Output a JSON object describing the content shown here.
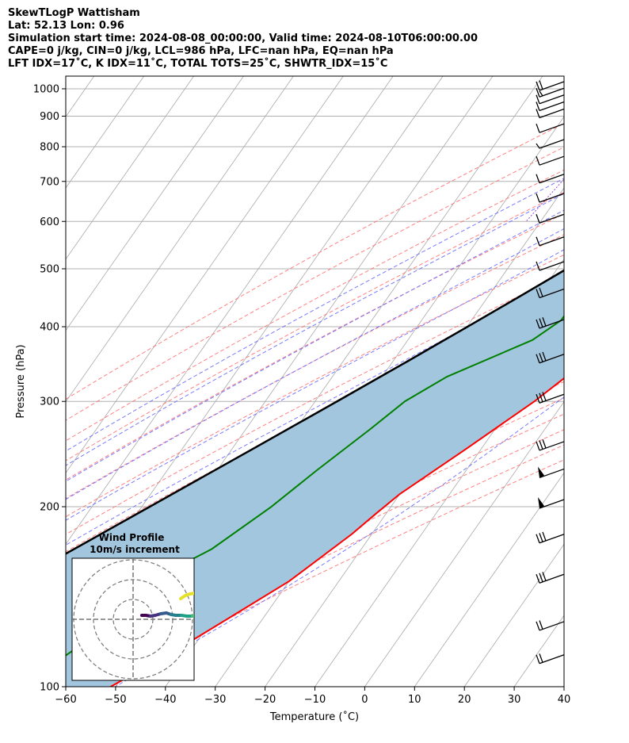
{
  "header": {
    "title": "SkewTLogP Wattisham",
    "latlon": "Lat: 52.13   Lon: 0.96",
    "times": "Simulation start time: 2024-08-08_00:00:00, Valid time: 2024-08-10T06:00:00.00",
    "indices1": "CAPE=0 j/kg, CIN=0 j/kg, LCL=986 hPa, LFC=nan hPa, EQ=nan hPa",
    "indices2": "LFT IDX=17˚C, K IDX=11˚C, TOTAL TOTS=25˚C, SHWTR_IDX=15˚C"
  },
  "chart_data": {
    "type": "skewt",
    "xlabel": "Temperature (˚C)",
    "ylabel": "Pressure (hPa)",
    "xlim": [
      -60,
      40
    ],
    "ylim": [
      1050,
      100
    ],
    "x_ticks": [
      "−60",
      "−50",
      "−40",
      "−30",
      "−20",
      "−10",
      "0",
      "10",
      "20",
      "30",
      "40"
    ],
    "x_tick_values": [
      -60,
      -50,
      -40,
      -30,
      -20,
      -10,
      0,
      10,
      20,
      30,
      40
    ],
    "y_ticks": [
      "1000",
      "900",
      "800",
      "700",
      "600",
      "500",
      "400",
      "300",
      "200",
      "100"
    ],
    "y_tick_values": [
      1000,
      900,
      800,
      700,
      600,
      500,
      400,
      300,
      200,
      100
    ],
    "colors": {
      "temperature": "#ff0000",
      "dewpoint": "#008000",
      "parcel": "#000000",
      "fill": "#a3c6df",
      "dry_adiabat": "#ff6b6b",
      "moist_adiabat": "#6b6bff",
      "mixing_ratio": "#9a4ad0",
      "isotherm": "#a9a9a9"
    },
    "series": [
      {
        "name": "Temperature",
        "points": [
          [
            1000,
            16
          ],
          [
            960,
            15
          ],
          [
            900,
            14.3
          ],
          [
            850,
            13.7
          ],
          [
            800,
            13.2
          ],
          [
            750,
            12.8
          ],
          [
            700,
            12.3
          ],
          [
            650,
            11.5
          ],
          [
            600,
            10.2
          ],
          [
            550,
            8.8
          ],
          [
            500,
            7
          ],
          [
            450,
            4.7
          ],
          [
            400,
            2
          ],
          [
            350,
            -1.3
          ],
          [
            300,
            -6
          ],
          [
            250,
            -13
          ],
          [
            210,
            -20
          ],
          [
            195,
            -22
          ],
          [
            180,
            -24
          ],
          [
            150,
            -30
          ],
          [
            130,
            -37
          ],
          [
            115,
            -43
          ],
          [
            100,
            -51
          ]
        ]
      },
      {
        "name": "Dewpoint",
        "points": [
          [
            1000,
            10
          ],
          [
            985,
            7.5
          ],
          [
            960,
            4.5
          ],
          [
            920,
            -1
          ],
          [
            880,
            -3
          ],
          [
            850,
            1.5
          ],
          [
            800,
            4.5
          ],
          [
            750,
            3.5
          ],
          [
            700,
            0
          ],
          [
            650,
            -2.5
          ],
          [
            600,
            -4.5
          ],
          [
            560,
            -6
          ],
          [
            520,
            -11
          ],
          [
            480,
            -13
          ],
          [
            450,
            -12
          ],
          [
            410,
            -12
          ],
          [
            380,
            -15
          ],
          [
            330,
            -27
          ],
          [
            300,
            -32
          ],
          [
            270,
            -35
          ],
          [
            230,
            -40
          ],
          [
            200,
            -44
          ],
          [
            170,
            -50
          ],
          [
            145,
            -60
          ],
          [
            120,
            -62
          ],
          [
            100,
            -69
          ]
        ]
      },
      {
        "name": "Parcel",
        "points": [
          [
            1000,
            13.6
          ],
          [
            986,
            12.3
          ],
          [
            950,
            10.7
          ],
          [
            900,
            8.6
          ],
          [
            850,
            6.3
          ],
          [
            800,
            3.9
          ],
          [
            750,
            1.1
          ],
          [
            700,
            -1.9
          ],
          [
            650,
            -5.3
          ],
          [
            600,
            -9.1
          ],
          [
            550,
            -13.3
          ],
          [
            500,
            -18.1
          ],
          [
            450,
            -23.6
          ],
          [
            400,
            -29.9
          ],
          [
            350,
            -37.1
          ],
          [
            300,
            -45.6
          ],
          [
            250,
            -55.8
          ],
          [
            200,
            -68.4
          ],
          [
            150,
            -84.7
          ],
          [
            100,
            -107.6
          ]
        ]
      }
    ],
    "wind_barbs": [
      {
        "p": 1000,
        "barb": "2 full"
      },
      {
        "p": 975,
        "barb": "1 full 1 half"
      },
      {
        "p": 950,
        "barb": "1 full"
      },
      {
        "p": 925,
        "barb": "1 full"
      },
      {
        "p": 900,
        "barb": "1 full"
      },
      {
        "p": 850,
        "barb": "1 full"
      },
      {
        "p": 800,
        "barb": "half"
      },
      {
        "p": 750,
        "barb": "1 full"
      },
      {
        "p": 700,
        "barb": "1 full"
      },
      {
        "p": 650,
        "barb": "1 full"
      },
      {
        "p": 600,
        "barb": "1 full"
      },
      {
        "p": 550,
        "barb": "1 full"
      },
      {
        "p": 500,
        "barb": "1 full"
      },
      {
        "p": 450,
        "barb": "2 full"
      },
      {
        "p": 400,
        "barb": "3 full"
      },
      {
        "p": 350,
        "barb": "3 full"
      },
      {
        "p": 300,
        "barb": "3 full"
      },
      {
        "p": 250,
        "barb": "3 full"
      },
      {
        "p": 225,
        "barb": "pennant"
      },
      {
        "p": 200,
        "barb": "pennant"
      },
      {
        "p": 175,
        "barb": "3 full"
      },
      {
        "p": 150,
        "barb": "3 full"
      },
      {
        "p": 125,
        "barb": "2 full"
      },
      {
        "p": 110,
        "barb": "2 full"
      }
    ],
    "inset": {
      "title": "Wind Profile",
      "subtitle": "10m/s increment"
    }
  }
}
